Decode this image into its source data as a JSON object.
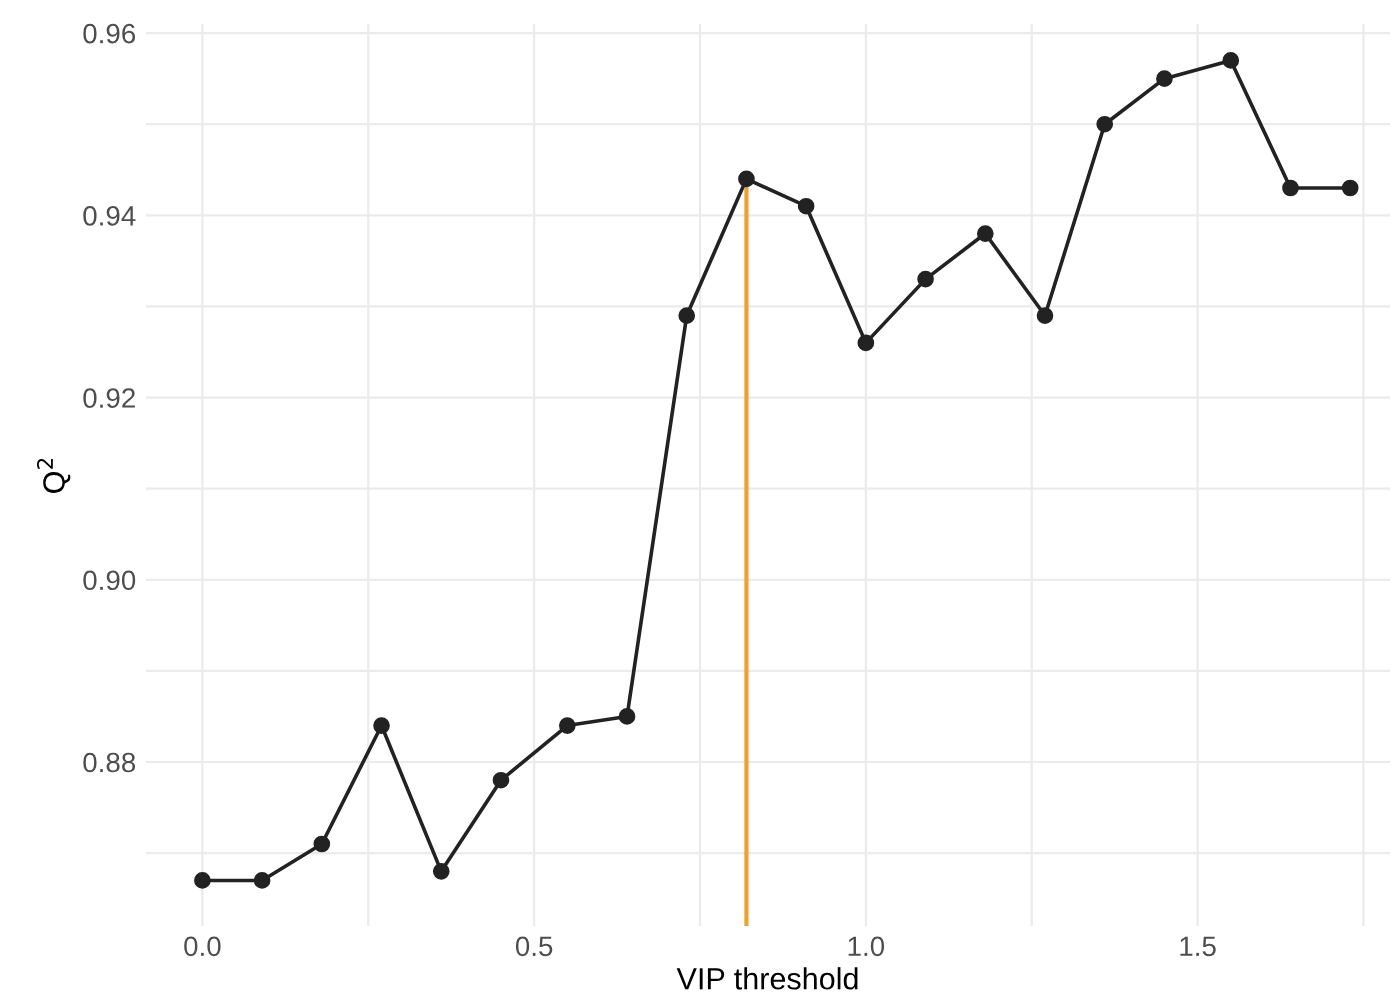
{
  "chart_data": {
    "type": "line",
    "xlabel": "VIP threshold",
    "ylabel": "Q$^{2}$",
    "x": [
      0,
      0.09,
      0.18,
      0.27,
      0.36,
      0.45,
      0.55,
      0.64,
      0.73,
      0.82,
      0.91,
      1.0,
      1.09,
      1.18,
      1.27,
      1.36,
      1.45,
      1.55,
      1.64,
      1.73
    ],
    "series": [
      {
        "color": "#222222",
        "values": [
          0.867,
          0.867,
          0.871,
          0.884,
          0.868,
          0.878,
          0.884,
          0.885,
          0.929,
          0.944,
          0.941,
          0.926,
          0.933,
          0.938,
          0.929,
          0.95,
          0.955,
          0.957,
          0.943,
          0.943
        ]
      }
    ],
    "xlim": [
      -0.085,
      1.79
    ],
    "ylim": [
      0.862,
      0.961
    ],
    "xticks": [
      {
        "value": 0,
        "label": "0.0"
      },
      {
        "value": 0.25,
        "label": null
      },
      0.5,
      {
        "value": 0.75,
        "label": null
      },
      {
        "value": 1,
        "label": "1.0"
      },
      {
        "value": 1.25,
        "label": null
      },
      1.5,
      {
        "value": 1.75,
        "label": null
      }
    ],
    "yticks": [
      {
        "value": 0.87,
        "label": null
      },
      0.88,
      {
        "value": 0.89,
        "label": null
      },
      {
        "value": 0.9,
        "label": "0.90"
      },
      {
        "value": 0.91,
        "label": null
      },
      0.92,
      {
        "value": 0.93,
        "label": null
      },
      0.94,
      {
        "value": 0.95,
        "label": null
      },
      0.96
    ],
    "ref_lines": [
      {
        "axis": "x",
        "value": 0.82,
        "color": "#f0a030"
      }
    ],
    "grid": true,
    "marker": "circle",
    "line_style": "solid",
    "legend": false
  }
}
